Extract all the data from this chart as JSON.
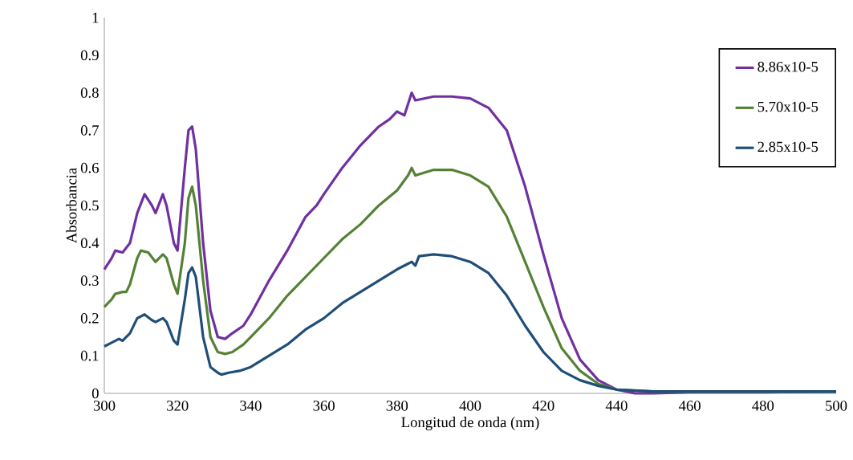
{
  "chart_data": {
    "type": "line",
    "xlabel": "Longitud de onda (nm)",
    "ylabel": "Absorbancia",
    "xlim": [
      300,
      500
    ],
    "xticks": [
      300,
      320,
      340,
      360,
      380,
      400,
      420,
      440,
      460,
      480,
      500
    ],
    "ylim": [
      0,
      1
    ],
    "yticks": [
      0,
      0.1,
      0.2,
      0.3,
      0.4,
      0.5,
      0.6,
      0.7,
      0.8,
      0.9,
      1
    ],
    "grid": false,
    "legend": "right",
    "marker": "none",
    "line_style": "solid",
    "series": [
      {
        "name": "8.86x10-5",
        "color": "#7030a0",
        "x": [
          300,
          302,
          303,
          305,
          307,
          309,
          311,
          313,
          314,
          316,
          317,
          319,
          320,
          322,
          323,
          324,
          325,
          327,
          329,
          331,
          333,
          335,
          338,
          340,
          345,
          350,
          355,
          358,
          360,
          365,
          370,
          375,
          378,
          380,
          382,
          384,
          385,
          390,
          395,
          400,
          405,
          410,
          415,
          420,
          425,
          430,
          435,
          440,
          445,
          450,
          460,
          480,
          500
        ],
        "values": [
          0.33,
          0.36,
          0.38,
          0.375,
          0.4,
          0.48,
          0.53,
          0.5,
          0.48,
          0.53,
          0.5,
          0.4,
          0.38,
          0.6,
          0.7,
          0.71,
          0.65,
          0.4,
          0.22,
          0.15,
          0.145,
          0.16,
          0.18,
          0.21,
          0.3,
          0.38,
          0.47,
          0.5,
          0.53,
          0.6,
          0.66,
          0.71,
          0.73,
          0.75,
          0.74,
          0.8,
          0.78,
          0.79,
          0.79,
          0.785,
          0.76,
          0.7,
          0.55,
          0.37,
          0.2,
          0.09,
          0.035,
          0.01,
          0.0,
          0.0,
          0.003,
          0.003,
          0.005
        ]
      },
      {
        "name": "5.70x10-5",
        "color": "#548235",
        "x": [
          300,
          302,
          303,
          305,
          306,
          307,
          309,
          310,
          312,
          314,
          316,
          317,
          319,
          320,
          322,
          323,
          324,
          325,
          327,
          329,
          331,
          333,
          335,
          338,
          340,
          345,
          350,
          355,
          360,
          365,
          370,
          375,
          380,
          383,
          384,
          385,
          390,
          395,
          400,
          405,
          410,
          415,
          420,
          425,
          430,
          435,
          440,
          450,
          460,
          500
        ],
        "values": [
          0.23,
          0.25,
          0.265,
          0.27,
          0.27,
          0.29,
          0.36,
          0.38,
          0.375,
          0.35,
          0.37,
          0.36,
          0.29,
          0.265,
          0.4,
          0.52,
          0.55,
          0.5,
          0.3,
          0.15,
          0.11,
          0.105,
          0.11,
          0.13,
          0.15,
          0.2,
          0.26,
          0.31,
          0.36,
          0.41,
          0.45,
          0.5,
          0.54,
          0.58,
          0.6,
          0.58,
          0.595,
          0.595,
          0.58,
          0.55,
          0.47,
          0.35,
          0.23,
          0.12,
          0.06,
          0.025,
          0.01,
          0.005,
          0.004,
          0.004
        ]
      },
      {
        "name": "2.85x10-5",
        "color": "#1f4e79",
        "x": [
          300,
          302,
          304,
          305,
          307,
          309,
          311,
          313,
          314,
          316,
          317,
          319,
          320,
          322,
          323,
          324,
          325,
          327,
          329,
          331,
          332,
          334,
          337,
          340,
          345,
          350,
          355,
          360,
          365,
          370,
          375,
          380,
          383,
          384,
          385,
          386,
          390,
          395,
          400,
          405,
          410,
          415,
          420,
          425,
          430,
          435,
          440,
          450,
          500
        ],
        "values": [
          0.125,
          0.135,
          0.145,
          0.14,
          0.16,
          0.2,
          0.21,
          0.195,
          0.19,
          0.2,
          0.19,
          0.14,
          0.13,
          0.25,
          0.32,
          0.335,
          0.31,
          0.15,
          0.07,
          0.055,
          0.05,
          0.055,
          0.06,
          0.07,
          0.1,
          0.13,
          0.17,
          0.2,
          0.24,
          0.27,
          0.3,
          0.33,
          0.345,
          0.35,
          0.34,
          0.365,
          0.37,
          0.365,
          0.35,
          0.32,
          0.26,
          0.18,
          0.11,
          0.06,
          0.035,
          0.02,
          0.01,
          0.005,
          0.005
        ]
      }
    ]
  }
}
